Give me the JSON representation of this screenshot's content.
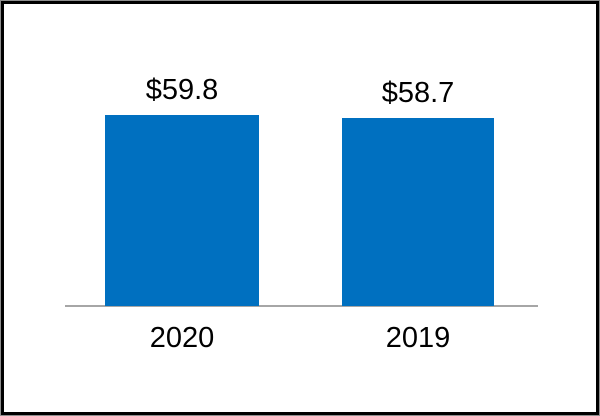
{
  "chart_data": {
    "type": "bar",
    "categories": [
      "2020",
      "2019"
    ],
    "values": [
      59.8,
      58.7
    ],
    "value_labels": [
      "$59.8",
      "$58.7"
    ],
    "ylim": [
      0,
      65
    ],
    "grid": false,
    "legend": false,
    "bar_color": "#0070C0",
    "axis_line_color": "#A6A6A6",
    "label_color": "#000000",
    "border_color": "#000000",
    "background": "#FFFFFF"
  }
}
